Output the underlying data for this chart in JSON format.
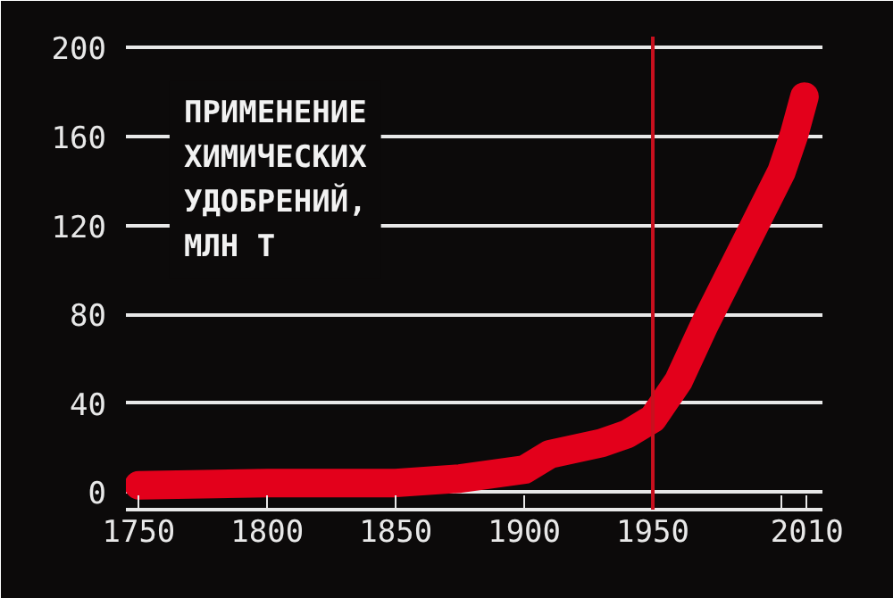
{
  "chart_data": {
    "type": "line",
    "title": "ПРИМЕНЕНИЕ\nХИМИЧЕСКИХ\nУДОБРЕНИЙ,\nМЛН Т",
    "x": [
      1750,
      1800,
      1850,
      1875,
      1900,
      1910,
      1930,
      1940,
      1950,
      1960,
      1970,
      1980,
      1990,
      2000,
      2005,
      2009
    ],
    "series": [
      {
        "color": "#e3001b",
        "values": [
          3,
          4,
          4,
          6,
          10,
          17,
          22,
          26,
          33,
          50,
          75,
          98,
          121,
          144,
          161,
          178
        ]
      }
    ],
    "xlim": [
      1745,
      2016
    ],
    "ylim": [
      -8,
      205
    ],
    "xticks": [
      1750,
      1800,
      1850,
      1900,
      1950,
      {
        "value": 2000,
        "label": null
      },
      2010
    ],
    "yticks": [
      0,
      40,
      80,
      120,
      160,
      200
    ],
    "grid": "y",
    "ref_lines": [
      {
        "axis": "x",
        "value": 1950,
        "label": null,
        "color": "#c8101e"
      }
    ]
  }
}
